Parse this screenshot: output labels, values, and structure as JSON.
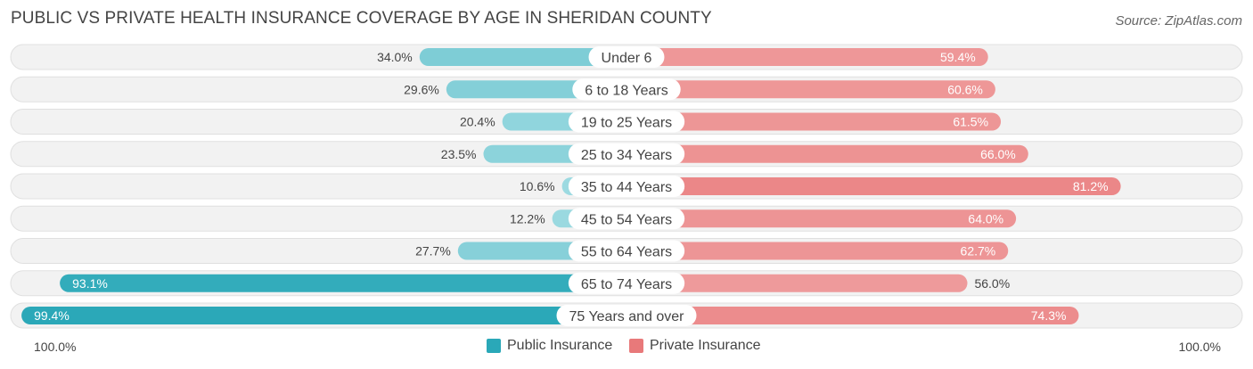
{
  "title": "PUBLIC VS PRIVATE HEALTH INSURANCE COVERAGE BY AGE IN SHERIDAN COUNTY",
  "source": "Source: ZipAtlas.com",
  "axis": {
    "left_label": "100.0%",
    "right_label": "100.0%"
  },
  "legend": [
    {
      "label": "Public Insurance",
      "color": "#2aa8b8"
    },
    {
      "label": "Private Insurance",
      "color": "#e8797a"
    }
  ],
  "chart_data": {
    "type": "bar",
    "orientation": "diverging-horizontal",
    "categories": [
      "Under 6",
      "6 to 18 Years",
      "19 to 25 Years",
      "25 to 34 Years",
      "35 to 44 Years",
      "45 to 54 Years",
      "55 to 64 Years",
      "65 to 74 Years",
      "75 Years and over"
    ],
    "series": [
      {
        "name": "Public Insurance",
        "values": [
          34.0,
          29.6,
          20.4,
          23.5,
          10.6,
          12.2,
          27.7,
          93.1,
          99.4
        ],
        "labels": [
          "34.0%",
          "29.6%",
          "20.4%",
          "23.5%",
          "10.6%",
          "12.2%",
          "27.7%",
          "93.1%",
          "99.4%"
        ]
      },
      {
        "name": "Private Insurance",
        "values": [
          59.4,
          60.6,
          61.5,
          66.0,
          81.2,
          64.0,
          62.7,
          56.0,
          74.3
        ],
        "labels": [
          "59.4%",
          "60.6%",
          "61.5%",
          "66.0%",
          "81.2%",
          "64.0%",
          "62.7%",
          "56.0%",
          "74.3%"
        ]
      }
    ],
    "xlim": [
      -100,
      100
    ],
    "grid": false,
    "legend_position": "bottom-center"
  }
}
